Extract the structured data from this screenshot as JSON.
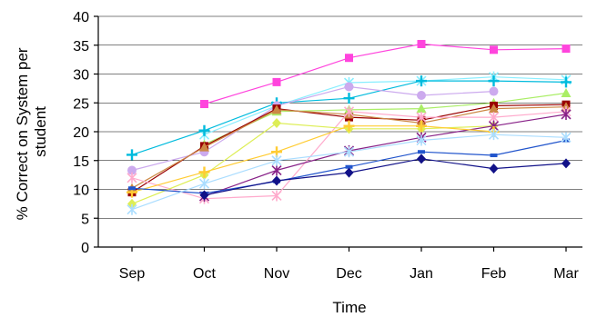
{
  "chart_data": {
    "type": "line",
    "title": "",
    "xlabel": "Time",
    "ylabel": "% Correct on System per student",
    "categories": [
      "Sep",
      "Oct",
      "Nov",
      "Dec",
      "Jan",
      "Feb",
      "Mar"
    ],
    "ylim": [
      0,
      40
    ],
    "yticks": [
      0,
      5,
      10,
      15,
      20,
      25,
      30,
      35,
      40
    ],
    "grid": true,
    "legend": "none",
    "series": [
      {
        "color": "#ff44dd",
        "marker": "square",
        "values": [
          null,
          24.8,
          28.6,
          32.8,
          35.2,
          34.2,
          34.4
        ]
      },
      {
        "color": "#88eeff",
        "marker": "star",
        "values": [
          null,
          19.5,
          24.5,
          28.5,
          28.8,
          29.5,
          29.0
        ]
      },
      {
        "color": "#00bbdd",
        "marker": "plus",
        "values": [
          16.0,
          20.2,
          25.0,
          25.8,
          28.8,
          28.8,
          28.6
        ]
      },
      {
        "color": "#ccaaee",
        "marker": "circle",
        "values": [
          13.3,
          16.5,
          24.5,
          27.8,
          26.3,
          27.0,
          null
        ]
      },
      {
        "color": "#aaee66",
        "marker": "triangle",
        "values": [
          null,
          17.8,
          23.5,
          23.8,
          24.0,
          25.0,
          26.7
        ]
      },
      {
        "color": "#990000",
        "marker": "square",
        "values": [
          9.5,
          17.5,
          24.0,
          22.5,
          22.0,
          24.5,
          24.7
        ]
      },
      {
        "color": "#cc8844",
        "marker": "triangle",
        "values": [
          10.2,
          17.3,
          23.8,
          23.0,
          21.5,
          24.0,
          24.3
        ]
      },
      {
        "color": "#ffaacc",
        "marker": "star",
        "values": [
          12.0,
          8.4,
          8.9,
          23.5,
          22.5,
          22.5,
          23.5
        ]
      },
      {
        "color": "#ddee55",
        "marker": "diamond",
        "values": [
          7.5,
          12.5,
          21.5,
          20.5,
          20.5,
          21.0,
          null
        ]
      },
      {
        "color": "#882288",
        "marker": "star",
        "values": [
          null,
          8.8,
          13.3,
          16.7,
          19.0,
          21.0,
          23.0
        ]
      },
      {
        "color": "#ffcc33",
        "marker": "plus",
        "values": [
          9.5,
          13.0,
          16.5,
          21.0,
          21.0,
          20.0,
          null
        ]
      },
      {
        "color": "#2255cc",
        "marker": "dash",
        "values": [
          10.2,
          9.3,
          11.4,
          13.9,
          16.5,
          15.9,
          18.5
        ]
      },
      {
        "color": "#aaddff",
        "marker": "star",
        "values": [
          6.5,
          11.0,
          15.0,
          16.5,
          18.5,
          19.5,
          19.0
        ]
      },
      {
        "color": "#111188",
        "marker": "diamond",
        "values": [
          null,
          9.0,
          11.5,
          12.9,
          15.3,
          13.6,
          14.5
        ]
      }
    ]
  }
}
